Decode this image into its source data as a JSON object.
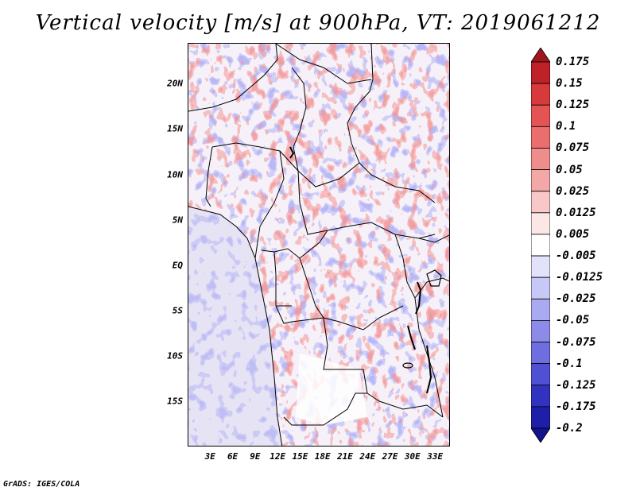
{
  "title": "Vertical velocity [m/s] at 900hPa, VT: 2019061212",
  "footer": "GrADS: IGES/COLA",
  "map": {
    "lat_labels": [
      "20N",
      "15N",
      "10N",
      "5N",
      "EQ",
      "5S",
      "10S",
      "15S"
    ],
    "lat_values": [
      20,
      15,
      10,
      5,
      0,
      -5,
      -10,
      -15
    ],
    "lon_labels": [
      "3E",
      "6E",
      "9E",
      "12E",
      "15E",
      "18E",
      "21E",
      "24E",
      "27E",
      "30E",
      "33E"
    ],
    "lon_values": [
      3,
      6,
      9,
      12,
      15,
      18,
      21,
      24,
      27,
      30,
      33
    ],
    "lat_range": [
      -20,
      24.5
    ],
    "lon_range": [
      0,
      35
    ]
  },
  "chart_data": {
    "type": "heatmap",
    "title": "Vertical velocity [m/s] at 900hPa, VT: 2019061212",
    "variable": "Vertical velocity",
    "units": "m/s",
    "level": "900hPa",
    "valid_time": "2019061212",
    "colorbar": {
      "labels": [
        "0.175",
        "0.15",
        "0.125",
        "0.1",
        "0.075",
        "0.05",
        "0.025",
        "0.0125",
        "0.005",
        "-0.005",
        "-0.0125",
        "-0.025",
        "-0.05",
        "-0.075",
        "-0.1",
        "-0.125",
        "-0.175",
        "-0.2"
      ],
      "colors": [
        "#a0161d",
        "#c02028",
        "#d63a3a",
        "#e45454",
        "#ea6e6e",
        "#ef8c8c",
        "#f3a8a8",
        "#f8c8c8",
        "#fce6e6",
        "#ffffff",
        "#e2e2fb",
        "#c8c8f6",
        "#aaaaf0",
        "#8c8ce8",
        "#6e6ee0",
        "#5050d4",
        "#3232c0",
        "#1e1ea8",
        "#12128a"
      ]
    }
  }
}
